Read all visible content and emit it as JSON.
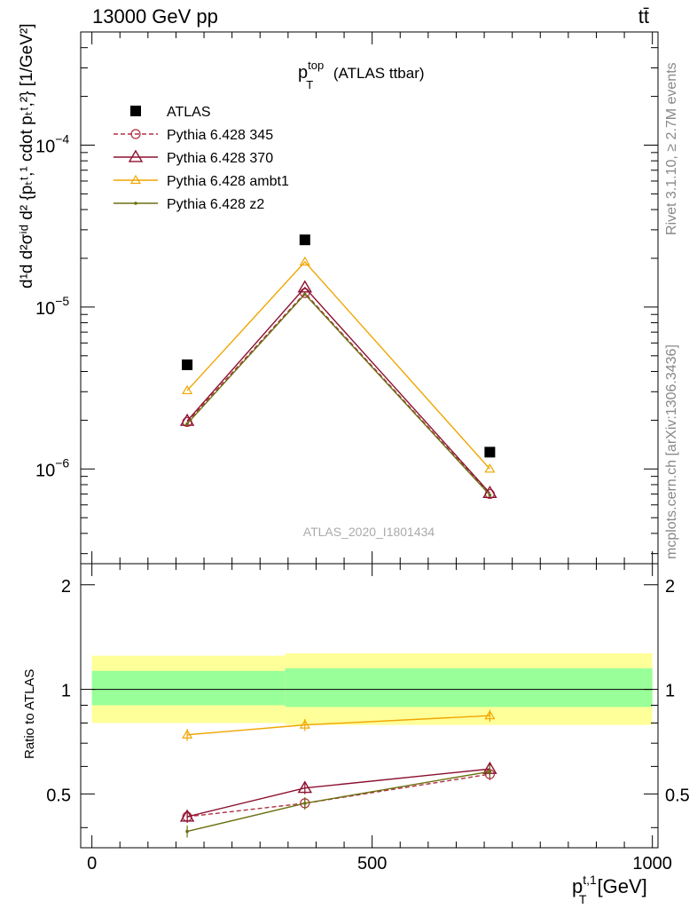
{
  "header": {
    "left": "13000 GeV pp",
    "right": "tt̄"
  },
  "side_labels": {
    "rivet": "Rivet 3.1.10, ≥ 2.7M events",
    "mcplots": "mcplots.cern.ch [arXiv:1306.3436]"
  },
  "plot_title": {
    "main": "p",
    "sup": "top",
    "sub": "T",
    "rest": " (ATLAS ttbar)"
  },
  "watermark": "ATLAS_2020_I1801434",
  "colors": {
    "atlas": "#000000",
    "p345": "#b03040",
    "p370": "#8b1030",
    "ambt1": "#f0a500",
    "z2": "#6b7010",
    "band_outer": "#ffff99",
    "band_inner": "#99ff99"
  },
  "axes": {
    "xlabel": "p",
    "xlabel_sup": "t,1",
    "xlabel_sub": "T",
    "xlabel_unit": " [GeV]",
    "ylabel_main": "d¹d  d²σⁱᵈ   d² {pₜᵗ,¹ cdot pₜᵗ,²} [1/GeV²]",
    "ylabel_ratio": "Ratio to ATLAS",
    "xticks": [
      "0",
      "500",
      "1000"
    ],
    "yticks_main": [
      {
        "base": "10",
        "exp": "−4",
        "value": 0.0001
      },
      {
        "base": "10",
        "exp": "−5",
        "value": 1e-05
      },
      {
        "base": "10",
        "exp": "−6",
        "value": 1e-06
      }
    ],
    "yticks_ratio": [
      "0.5",
      "1",
      "2"
    ]
  },
  "legend": [
    {
      "label": "ATLAS",
      "key": "atlas"
    },
    {
      "label": "Pythia 6.428 345",
      "key": "p345"
    },
    {
      "label": "Pythia 6.428 370",
      "key": "p370"
    },
    {
      "label": "Pythia 6.428 ambt1",
      "key": "ambt1"
    },
    {
      "label": "Pythia 6.428 z2",
      "key": "z2"
    }
  ],
  "chart_data": {
    "type": "line",
    "x": [
      170,
      380,
      710
    ],
    "xlim": [
      -20,
      1010
    ],
    "ylim_main": [
      2.6e-07,
      0.0005
    ],
    "log_y": true,
    "ylim_ratio": [
      0.35,
      2.3
    ],
    "atlas": [
      4.4e-06,
      2.6e-05,
      1.27e-06
    ],
    "series": [
      {
        "name": "Pythia 6.428 345",
        "key": "p345",
        "values": [
          1.95e-06,
          1.22e-05,
          7e-07
        ],
        "ratio": [
          0.43,
          0.47,
          0.57
        ]
      },
      {
        "name": "Pythia 6.428 370",
        "key": "p370",
        "values": [
          1.98e-06,
          1.32e-05,
          7.1e-07
        ],
        "ratio": [
          0.43,
          0.52,
          0.59
        ]
      },
      {
        "name": "Pythia 6.428 ambt1",
        "key": "ambt1",
        "values": [
          3.05e-06,
          1.9e-05,
          1e-06
        ],
        "ratio": [
          0.74,
          0.79,
          0.84
        ]
      },
      {
        "name": "Pythia 6.428 z2",
        "key": "z2",
        "values": [
          1.9e-06,
          1.2e-05,
          6.9e-07
        ],
        "ratio": [
          0.39,
          0.47,
          0.58
        ]
      }
    ],
    "bands": [
      {
        "x0": 0,
        "x1": 345,
        "outer": [
          0.8,
          1.25
        ],
        "inner": [
          0.9,
          1.13
        ]
      },
      {
        "x0": 345,
        "x1": 1000,
        "outer": [
          0.79,
          1.27
        ],
        "inner": [
          0.89,
          1.15
        ]
      }
    ]
  }
}
